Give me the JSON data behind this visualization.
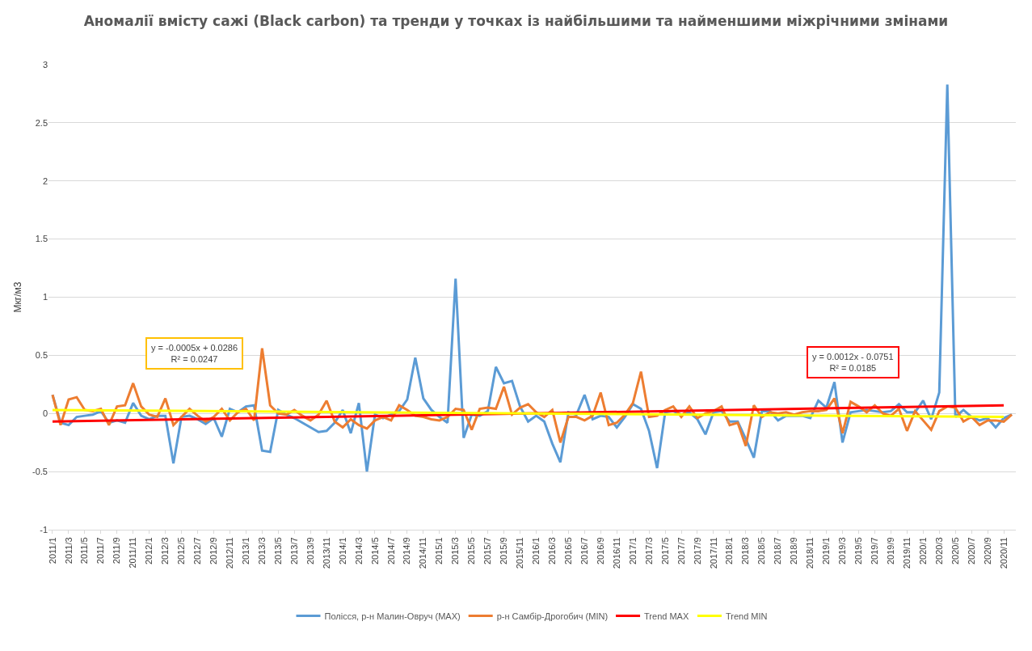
{
  "chart_data": {
    "type": "line",
    "title": "Аномалії вмісту сажі (Black carbon) та тренди у точках із найбільшими та найменшими міжрічними змінами",
    "ylabel": "Мкг/м3",
    "categories": [
      "2011/1",
      null,
      "2011/3",
      null,
      "2011/5",
      null,
      "2011/7",
      null,
      "2011/9",
      null,
      "2011/11",
      null,
      "2012/1",
      null,
      "2012/3",
      null,
      "2012/5",
      null,
      "2012/7",
      null,
      "2012/9",
      null,
      "2012/11",
      null,
      "2013/1",
      null,
      "2013/3",
      null,
      "2013/5",
      null,
      "2013/7",
      null,
      "2013/9",
      null,
      "2013/11",
      null,
      "2014/1",
      null,
      "2014/3",
      null,
      "2014/5",
      null,
      "2014/7",
      null,
      "2014/9",
      null,
      "2014/11",
      null,
      "2015/1",
      null,
      "2015/3",
      null,
      "2015/5",
      null,
      "2015/7",
      null,
      "2015/9",
      null,
      "2015/11",
      null,
      "2016/1",
      null,
      "2016/3",
      null,
      "2016/5",
      null,
      "2016/7",
      null,
      "2016/9",
      null,
      "2016/11",
      null,
      "2017/1",
      null,
      "2017/3",
      null,
      "2017/5",
      null,
      "2017/7",
      null,
      "2017/9",
      null,
      "2017/11",
      null,
      "2018/1",
      null,
      "2018/3",
      null,
      "2018/5",
      null,
      "2018/7",
      null,
      "2018/9",
      null,
      "2018/11",
      null,
      "2019/1",
      null,
      "2019/3",
      null,
      "2019/5",
      null,
      "2019/7",
      null,
      "2019/9",
      null,
      "2019/11",
      null,
      "2020/1",
      null,
      "2020/3",
      null,
      "2020/5",
      null,
      "2020/7",
      null,
      "2020/9",
      null,
      "2020/11",
      null
    ],
    "series": [
      {
        "name": "Полісся, р-н Малин-Овруч (MAX)",
        "color": "#5b9bd5",
        "values": [
          0.16,
          -0.08,
          -0.1,
          -0.03,
          -0.02,
          -0.01,
          0.02,
          -0.08,
          -0.06,
          -0.08,
          0.09,
          -0.02,
          -0.05,
          -0.02,
          -0.02,
          -0.43,
          -0.03,
          -0.02,
          -0.05,
          -0.09,
          -0.04,
          -0.2,
          0.04,
          0.01,
          0.06,
          0.07,
          -0.32,
          -0.33,
          0.03,
          -0.01,
          -0.04,
          -0.08,
          -0.12,
          -0.16,
          -0.15,
          -0.08,
          0.03,
          -0.17,
          0.09,
          -0.5,
          -0.01,
          -0.04,
          -0.01,
          0.02,
          0.12,
          0.48,
          0.13,
          0.03,
          -0.03,
          -0.08,
          1.16,
          -0.21,
          -0.01,
          -0.02,
          0.02,
          0.4,
          0.26,
          0.28,
          0.06,
          -0.07,
          -0.02,
          -0.07,
          -0.26,
          -0.42,
          0.01,
          -0.01,
          0.16,
          -0.05,
          -0.02,
          -0.03,
          -0.12,
          -0.03,
          0.08,
          0.04,
          -0.15,
          -0.47,
          0.01,
          0.02,
          -0.01,
          0.01,
          -0.05,
          -0.18,
          0.01,
          0.02,
          -0.07,
          -0.07,
          -0.22,
          -0.38,
          0.02,
          0.02,
          -0.06,
          -0.02,
          -0.02,
          -0.02,
          -0.04,
          0.11,
          0.05,
          0.27,
          -0.25,
          0.01,
          0.02,
          0.03,
          0.02,
          0.01,
          0.02,
          0.08,
          0.01,
          0.01,
          0.11,
          -0.05,
          0.18,
          2.83,
          -0.03,
          0.03,
          -0.03,
          -0.06,
          -0.04,
          -0.12,
          -0.04,
          -0.01
        ]
      },
      {
        "name": "р-н Самбір-Дрогобич (MIN)",
        "color": "#ed7d31",
        "values": [
          0.16,
          -0.1,
          0.12,
          0.14,
          0.03,
          0.02,
          0.04,
          -0.1,
          0.06,
          0.07,
          0.26,
          0.06,
          -0.01,
          -0.03,
          0.13,
          -0.1,
          -0.03,
          0.04,
          -0.02,
          -0.07,
          -0.03,
          0.04,
          -0.06,
          0.01,
          0.04,
          -0.06,
          0.56,
          0.07,
          0.0,
          -0.01,
          0.03,
          -0.02,
          -0.06,
          -0.01,
          0.11,
          -0.07,
          -0.12,
          -0.05,
          -0.1,
          -0.13,
          -0.06,
          -0.03,
          -0.06,
          0.07,
          0.03,
          -0.02,
          -0.03,
          -0.05,
          -0.06,
          -0.03,
          0.04,
          0.03,
          -0.14,
          0.04,
          0.05,
          0.04,
          0.23,
          -0.01,
          0.05,
          0.08,
          0.01,
          -0.03,
          0.03,
          -0.25,
          -0.03,
          -0.03,
          -0.06,
          -0.02,
          0.18,
          -0.1,
          -0.08,
          -0.01,
          0.09,
          0.36,
          -0.03,
          -0.02,
          0.03,
          0.06,
          -0.03,
          0.06,
          -0.04,
          0.0,
          0.02,
          0.06,
          -0.1,
          -0.08,
          -0.28,
          0.07,
          -0.03,
          0.01,
          0.0,
          0.01,
          -0.01,
          0.01,
          0.02,
          0.02,
          0.03,
          0.13,
          -0.17,
          0.1,
          0.06,
          0.01,
          0.07,
          0.0,
          -0.02,
          0.04,
          -0.15,
          0.02,
          -0.06,
          -0.14,
          0.02,
          0.06,
          0.05,
          -0.07,
          -0.03,
          -0.1,
          -0.06,
          -0.06,
          -0.07,
          -0.01
        ]
      },
      {
        "name": "Trend MAX",
        "color": "#ff0000",
        "x": [
          "2011/1",
          "2020/11"
        ],
        "values": [
          -0.07,
          0.07
        ]
      },
      {
        "name": "Trend MIN",
        "color": "#ffff00",
        "x": [
          "2011/1",
          "2020/11"
        ],
        "values": [
          0.03,
          -0.03
        ]
      }
    ],
    "annotations": [
      "y = -0.0005x + 0.0286\nR² = 0.0247",
      "y = 0.0012x - 0.0751\nR² = 0.0185"
    ],
    "ylim": [
      -1,
      3
    ],
    "yticks": [
      -1,
      -0.5,
      0,
      0.5,
      1,
      1.5,
      2,
      2.5,
      3
    ],
    "grid": "y",
    "legend": "bottom",
    "line_style": "solid",
    "marker": "none"
  }
}
